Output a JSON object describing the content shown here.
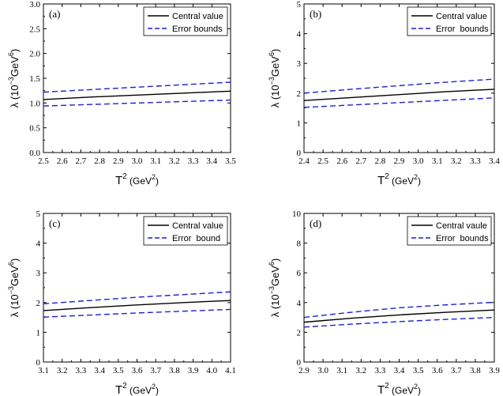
{
  "ylabel_main": "λ (10",
  "ylabel_exp": "−3",
  "ylabel_unit": "GeV",
  "ylabel_unit_exp": "6",
  "ylabel_close": ")",
  "xlabel_main": "T",
  "xlabel_exp": "2",
  "xlabel_unit_open": " (GeV",
  "xlabel_unit_exp": "2",
  "xlabel_close": ")",
  "colors": {
    "central": "#000000",
    "bounds": "#1f1fd6",
    "frame": "#000000"
  },
  "chart_data": [
    {
      "type": "line",
      "panel_label": "(a)",
      "legend": [
        "Central value",
        "Error bounds"
      ],
      "xlim": [
        2.5,
        3.5
      ],
      "ylim": [
        0.0,
        3.0
      ],
      "xticks": [
        2.5,
        2.6,
        2.7,
        2.8,
        2.9,
        3.0,
        3.1,
        3.2,
        3.3,
        3.4,
        3.5
      ],
      "yticks": [
        0.0,
        0.5,
        1.0,
        1.5,
        2.0,
        2.5,
        3.0
      ],
      "xtick_labels": [
        "2.5",
        "2.6",
        "2.7",
        "2.8",
        "2.9",
        "3.0",
        "3.1",
        "3.2",
        "3.3",
        "3.4",
        "3.5"
      ],
      "ytick_labels": [
        "0.0",
        "0.5",
        "1.0",
        "1.5",
        "2.0",
        "2.5",
        "3.0"
      ],
      "x": [
        2.5,
        2.75,
        3.0,
        3.25,
        3.5
      ],
      "series": [
        {
          "role": "central",
          "values": [
            1.07,
            1.12,
            1.16,
            1.2,
            1.24
          ]
        },
        {
          "role": "upper",
          "values": [
            1.22,
            1.27,
            1.32,
            1.37,
            1.42
          ]
        },
        {
          "role": "lower",
          "values": [
            0.94,
            0.97,
            1.0,
            1.03,
            1.06
          ]
        }
      ]
    },
    {
      "type": "line",
      "panel_label": "(b)",
      "legend": [
        "Central value",
        "Error  bounds"
      ],
      "xlim": [
        2.4,
        3.4
      ],
      "ylim": [
        0,
        5
      ],
      "xticks": [
        2.4,
        2.5,
        2.6,
        2.7,
        2.8,
        2.9,
        3.0,
        3.1,
        3.2,
        3.3,
        3.4
      ],
      "yticks": [
        0,
        1,
        2,
        3,
        4,
        5
      ],
      "xtick_labels": [
        "2.4",
        "2.5",
        "2.6",
        "2.7",
        "2.8",
        "2.9",
        "3.0",
        "3.1",
        "3.2",
        "3.3",
        "3.4"
      ],
      "ytick_labels": [
        "0",
        "1",
        "2",
        "3",
        "4",
        "5"
      ],
      "x": [
        2.4,
        2.65,
        2.9,
        3.15,
        3.4
      ],
      "series": [
        {
          "role": "central",
          "values": [
            1.75,
            1.85,
            1.95,
            2.05,
            2.13
          ]
        },
        {
          "role": "upper",
          "values": [
            2.0,
            2.13,
            2.25,
            2.37,
            2.47
          ]
        },
        {
          "role": "lower",
          "values": [
            1.52,
            1.6,
            1.68,
            1.76,
            1.84
          ]
        }
      ]
    },
    {
      "type": "line",
      "panel_label": "(c)",
      "legend": [
        "Central value",
        "Error  bound"
      ],
      "xlim": [
        3.1,
        4.1
      ],
      "ylim": [
        0,
        5
      ],
      "xticks": [
        3.1,
        3.2,
        3.3,
        3.4,
        3.5,
        3.6,
        3.7,
        3.8,
        3.9,
        4.0,
        4.1
      ],
      "yticks": [
        0,
        1,
        2,
        3,
        4,
        5
      ],
      "xtick_labels": [
        "3.1",
        "3.2",
        "3.3",
        "3.4",
        "3.5",
        "3.6",
        "3.7",
        "3.8",
        "3.9",
        "4.0",
        "4.1"
      ],
      "ytick_labels": [
        "0",
        "1",
        "2",
        "3",
        "4",
        "5"
      ],
      "x": [
        3.1,
        3.35,
        3.6,
        3.85,
        4.1
      ],
      "series": [
        {
          "role": "central",
          "values": [
            1.73,
            1.83,
            1.92,
            2.0,
            2.07
          ]
        },
        {
          "role": "upper",
          "values": [
            1.96,
            2.07,
            2.18,
            2.27,
            2.36
          ]
        },
        {
          "role": "lower",
          "values": [
            1.51,
            1.58,
            1.65,
            1.71,
            1.77
          ]
        }
      ]
    },
    {
      "type": "line",
      "panel_label": "(d)",
      "legend": [
        "Central vaule",
        "Error  bounds"
      ],
      "xlim": [
        2.9,
        3.9
      ],
      "ylim": [
        0,
        10
      ],
      "xticks": [
        2.9,
        3.0,
        3.1,
        3.2,
        3.3,
        3.4,
        3.5,
        3.6,
        3.7,
        3.8,
        3.9
      ],
      "yticks": [
        0,
        2,
        4,
        6,
        8,
        10
      ],
      "xtick_labels": [
        "2.9",
        "3.0",
        "3.1",
        "3.2",
        "3.3",
        "3.4",
        "3.5",
        "3.6",
        "3.7",
        "3.8",
        "3.9"
      ],
      "ytick_labels": [
        "0",
        "2",
        "4",
        "6",
        "8",
        "10"
      ],
      "x": [
        2.9,
        3.15,
        3.4,
        3.65,
        3.9
      ],
      "series": [
        {
          "role": "central",
          "values": [
            2.68,
            2.95,
            3.17,
            3.35,
            3.5
          ]
        },
        {
          "role": "upper",
          "values": [
            3.0,
            3.35,
            3.65,
            3.85,
            4.02
          ]
        },
        {
          "role": "lower",
          "values": [
            2.35,
            2.55,
            2.72,
            2.87,
            3.0
          ]
        }
      ]
    }
  ]
}
